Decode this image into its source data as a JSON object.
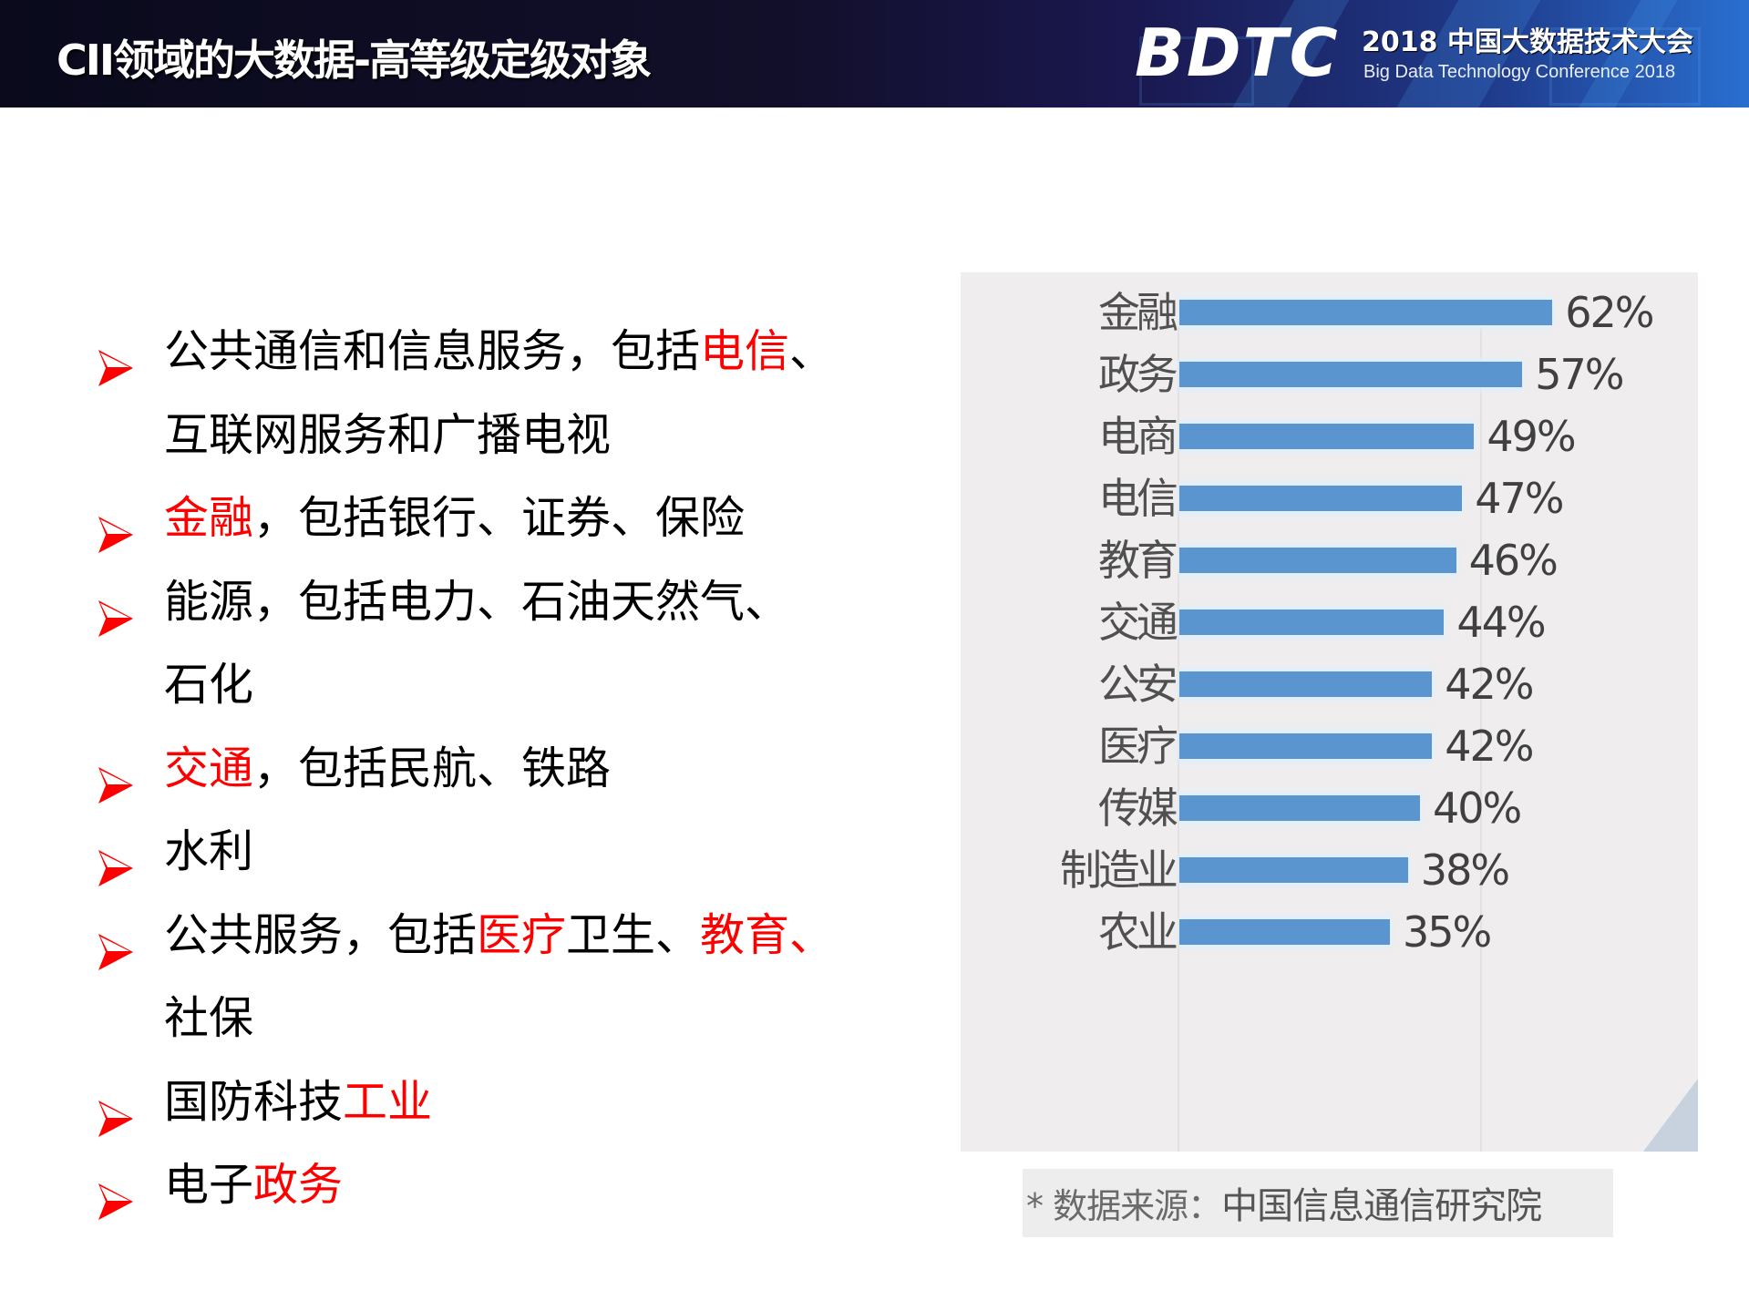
{
  "header": {
    "title": "CII领域的大数据-高等级定级对象",
    "logo": {
      "mark": "BDTC",
      "cn": "2018 中国大数据技术大会",
      "en": "Big Data Technology Conference 2018"
    }
  },
  "bullets": [
    {
      "icon": "red-arrow-bullet-icon",
      "segments": [
        {
          "text": "公共通信和信息服务，包括",
          "highlight": false
        },
        {
          "text": "电信",
          "highlight": true
        },
        {
          "text": "、",
          "highlight": false
        }
      ],
      "continuation": "互联网服务和广播电视"
    },
    {
      "icon": "red-arrow-bullet-icon",
      "segments": [
        {
          "text": "金融",
          "highlight": true
        },
        {
          "text": "，包括银行、证券、保险",
          "highlight": false
        }
      ]
    },
    {
      "icon": "red-arrow-bullet-icon",
      "segments": [
        {
          "text": "能源，包括电力、石油天然气、",
          "highlight": false
        }
      ],
      "continuation": "石化"
    },
    {
      "icon": "red-arrow-bullet-icon",
      "segments": [
        {
          "text": "交通",
          "highlight": true
        },
        {
          "text": "，包括民航、铁路",
          "highlight": false
        }
      ]
    },
    {
      "icon": "red-arrow-bullet-icon",
      "segments": [
        {
          "text": "水利",
          "highlight": false
        }
      ]
    },
    {
      "icon": "red-arrow-bullet-icon",
      "segments": [
        {
          "text": "公共服务，包括",
          "highlight": false
        },
        {
          "text": "医疗",
          "highlight": true
        },
        {
          "text": "卫生、",
          "highlight": false
        },
        {
          "text": "教育、",
          "highlight": true
        }
      ],
      "continuation": "社保"
    },
    {
      "icon": "red-arrow-bullet-icon",
      "segments": [
        {
          "text": "国防科技",
          "highlight": false
        },
        {
          "text": "工业",
          "highlight": true
        }
      ]
    },
    {
      "icon": "red-arrow-bullet-icon",
      "segments": [
        {
          "text": "电子",
          "highlight": false
        },
        {
          "text": "政务",
          "highlight": true
        }
      ]
    }
  ],
  "colors": {
    "highlight": "#ff0000",
    "bar": "#5b95cf",
    "chart_bg": "#efedee"
  },
  "chart_data": {
    "type": "bar",
    "orientation": "horizontal",
    "title": "",
    "xlabel": "",
    "ylabel": "",
    "categories": [
      "金融",
      "政务",
      "电商",
      "电信",
      "教育",
      "交通",
      "公安",
      "医疗",
      "传媒",
      "制造业",
      "农业"
    ],
    "values": [
      62,
      57,
      49,
      47,
      46,
      44,
      42,
      42,
      40,
      38,
      35
    ],
    "value_labels": [
      "62%",
      "57%",
      "49%",
      "47%",
      "46%",
      "44%",
      "42%",
      "42%",
      "40%",
      "38%",
      "35%"
    ],
    "unit": "%",
    "xlim": [
      0,
      70
    ],
    "grid": true,
    "legend": null
  },
  "source": {
    "label": "* 数据来源：",
    "org": "中国信息通信研究院"
  }
}
